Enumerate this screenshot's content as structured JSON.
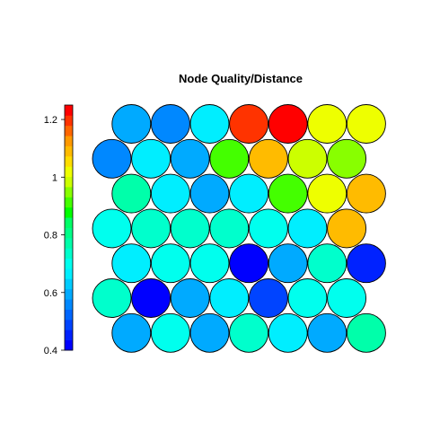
{
  "chart_data": {
    "type": "heatmap",
    "subtype": "som-hexagonal-node-map",
    "title": "Node Quality/Distance",
    "grid": false,
    "layout": "hexagonal",
    "rows": 7,
    "cols": 7,
    "legend": {
      "position": "left",
      "type": "color-scale",
      "ticks": [
        "0.4",
        "0.6",
        "0.8",
        "1",
        "1.2"
      ],
      "tick_values": [
        0.4,
        0.6,
        0.8,
        1.0,
        1.2
      ],
      "range": [
        0.4,
        1.25
      ],
      "palette": [
        "#0000ff",
        "#0022ff",
        "#0044ff",
        "#0066ff",
        "#0088ff",
        "#00aaff",
        "#00ccff",
        "#00eeff",
        "#00ffee",
        "#00ffcc",
        "#00ffaa",
        "#00ff88",
        "#00ff66",
        "#00ff00",
        "#44ff00",
        "#88ff00",
        "#ccff00",
        "#eeff00",
        "#ffdd00",
        "#ffbb00",
        "#ff9900",
        "#ff6600",
        "#ff3300",
        "#ff0000"
      ]
    },
    "values": [
      [
        0.61,
        0.56,
        0.65,
        1.18,
        1.24,
        1.03,
        1.03
      ],
      [
        0.55,
        0.66,
        0.61,
        0.91,
        1.1,
        0.98,
        0.96
      ],
      [
        0.78,
        0.65,
        0.61,
        0.66,
        0.9,
        1.03,
        1.1
      ],
      [
        0.7,
        0.74,
        0.75,
        0.75,
        0.7,
        0.66,
        1.1
      ],
      [
        0.65,
        0.7,
        0.7,
        0.43,
        0.61,
        0.75,
        0.47
      ],
      [
        0.75,
        0.42,
        0.61,
        0.65,
        0.48,
        0.7,
        0.7
      ],
      [
        0.61,
        0.7,
        0.61,
        0.75,
        0.65,
        0.61,
        0.76
      ]
    ],
    "row_offsets": [
      1,
      0,
      1,
      0,
      1,
      0,
      1
    ]
  }
}
